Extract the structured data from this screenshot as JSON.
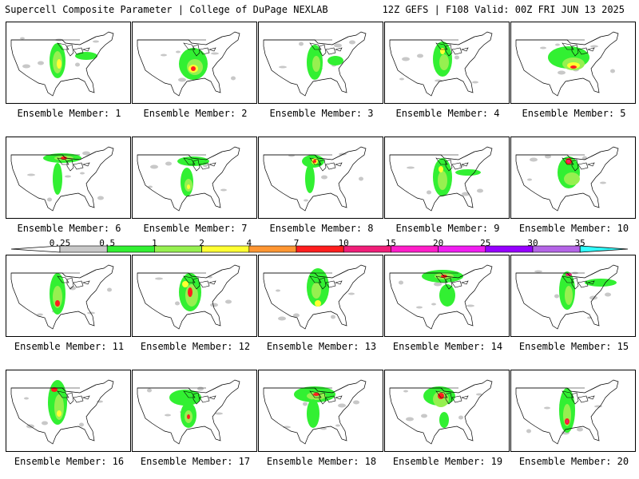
{
  "header": {
    "title_left": "Supercell Composite Parameter | College of DuPage NEXLAB",
    "title_right": "12Z GEFS | F108 Valid: 00Z FRI JUN 13 2025"
  },
  "legend": {
    "ticks": [
      "0.25",
      "0.5",
      "1",
      "2",
      "4",
      "7",
      "10",
      "15",
      "20",
      "25",
      "30",
      "35"
    ],
    "colors": [
      "#c8c8c8",
      "#32f032",
      "#96f050",
      "#ffff32",
      "#ff9632",
      "#ff1e1e",
      "#f01e78",
      "#ff1ec8",
      "#f01ef0",
      "#9600ff",
      "#b464e6",
      "#32ffff"
    ]
  },
  "panels": [
    {
      "label": "Ensemble Member: 1"
    },
    {
      "label": "Ensemble Member: 2"
    },
    {
      "label": "Ensemble Member: 3"
    },
    {
      "label": "Ensemble Member: 4"
    },
    {
      "label": "Ensemble Member: 5"
    },
    {
      "label": "Ensemble Member: 6"
    },
    {
      "label": "Ensemble Member: 7"
    },
    {
      "label": "Ensemble Member: 8"
    },
    {
      "label": "Ensemble Member: 9"
    },
    {
      "label": "Ensemble Member: 10"
    },
    {
      "label": "Ensemble Member: 11"
    },
    {
      "label": "Ensemble Member: 12"
    },
    {
      "label": "Ensemble Member: 13"
    },
    {
      "label": "Ensemble Member: 14"
    },
    {
      "label": "Ensemble Member: 15"
    },
    {
      "label": "Ensemble Member: 16"
    },
    {
      "label": "Ensemble Member: 17"
    },
    {
      "label": "Ensemble Member: 18"
    },
    {
      "label": "Ensemble Member: 19"
    },
    {
      "label": "Ensemble Member: 20"
    }
  ]
}
